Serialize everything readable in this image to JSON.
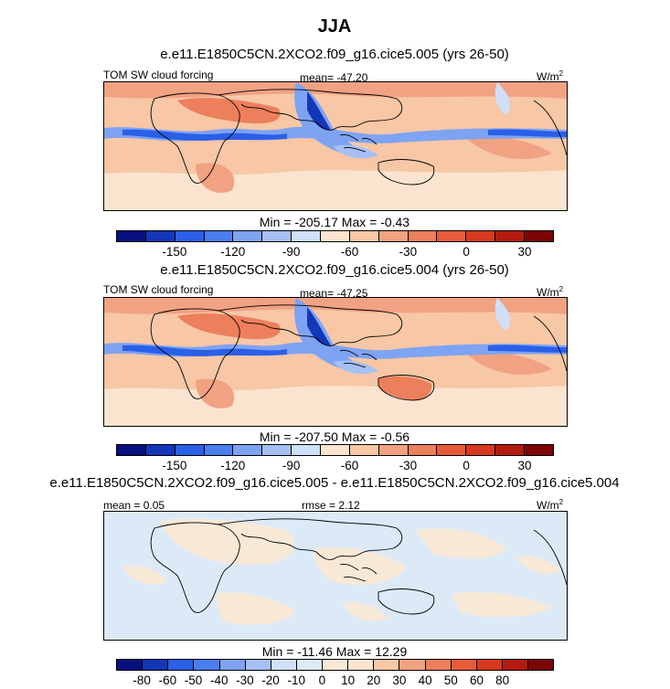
{
  "figure": {
    "season": "JJA"
  },
  "panels": [
    {
      "title": "e.e11.E1850C5CN.2XCO2.f09_g16.cice5.005 (yrs 26-50)",
      "variable": "TOM SW cloud forcing",
      "stat": "mean= -47.20",
      "units": "W/m",
      "units_sup": "2",
      "minmax": "Min = -205.17 Max =  -0.43",
      "kind": "field"
    },
    {
      "title": "e.e11.E1850C5CN.2XCO2.f09_g16.cice5.004 (yrs 26-50)",
      "variable": "TOM SW cloud forcing",
      "stat": "mean= -47.25",
      "units": "W/m",
      "units_sup": "2",
      "minmax": "Min = -207.50 Max =  -0.56",
      "kind": "field"
    },
    {
      "title": "e.e11.E1850C5CN.2XCO2.f09_g16.cice5.005 - e.e11.E1850C5CN.2XCO2.f09_g16.cice5.004",
      "stat_left": "mean =   0.05",
      "stat": "rmse =   2.12",
      "units": "W/m",
      "units_sup": "2",
      "minmax": "Min = -11.46 Max =  12.29",
      "kind": "diff"
    }
  ],
  "colorbars": {
    "field": {
      "colors": [
        "#08107f",
        "#1436b8",
        "#2a5fe8",
        "#4a7ef0",
        "#7ea3f3",
        "#a6c0f4",
        "#cfe0f8",
        "#fbe4cf",
        "#f7c7a6",
        "#f1a282",
        "#ec7f5c",
        "#e75b38",
        "#d7391e",
        "#b41b10",
        "#7b0605"
      ],
      "tick_labels": [
        "-150",
        "-120",
        "-90",
        "-60",
        "-30",
        "0",
        "30"
      ],
      "tick_boundaries": [
        2,
        4,
        6,
        8,
        10,
        12,
        14
      ]
    },
    "diff": {
      "colors": [
        "#08107f",
        "#1436b8",
        "#2a5fe8",
        "#4a7ef0",
        "#7ea3f3",
        "#a6c0f4",
        "#cfe0f8",
        "#dceaf8",
        "#f8e8d6",
        "#fbe4cf",
        "#f7c7a6",
        "#f1a282",
        "#ec7f5c",
        "#e75b38",
        "#d7391e",
        "#b41b10",
        "#7b0605"
      ],
      "tick_labels": [
        "-80",
        "-60",
        "-50",
        "-40",
        "-30",
        "-20",
        "-10",
        "0",
        "10",
        "20",
        "30",
        "40",
        "50",
        "60",
        "80"
      ],
      "tick_boundaries": [
        1,
        2,
        3,
        4,
        5,
        6,
        7,
        8,
        9,
        10,
        11,
        12,
        13,
        14,
        15
      ]
    }
  },
  "palette": {
    "land_outline": "#000000",
    "positive_fill": "#f7c7a6",
    "negative_fill": "#cfe0f8"
  }
}
